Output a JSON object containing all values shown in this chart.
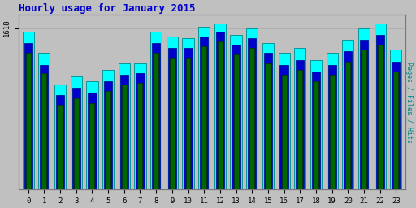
{
  "title": "Hourly usage for January 2015",
  "hours": [
    0,
    1,
    2,
    3,
    4,
    5,
    6,
    7,
    8,
    9,
    10,
    11,
    12,
    13,
    14,
    15,
    16,
    17,
    18,
    19,
    20,
    21,
    22,
    23
  ],
  "ytick_label": "1618",
  "hits": [
    95,
    82,
    63,
    68,
    65,
    72,
    76,
    76,
    95,
    92,
    91,
    98,
    100,
    93,
    97,
    88,
    82,
    85,
    78,
    82,
    90,
    97,
    100,
    84
  ],
  "files": [
    88,
    75,
    57,
    61,
    58,
    65,
    69,
    70,
    88,
    85,
    85,
    92,
    95,
    87,
    91,
    82,
    75,
    78,
    71,
    75,
    83,
    90,
    93,
    77
  ],
  "pages": [
    82,
    70,
    51,
    55,
    52,
    59,
    63,
    64,
    82,
    79,
    79,
    86,
    89,
    81,
    85,
    76,
    69,
    72,
    65,
    69,
    77,
    84,
    87,
    71
  ],
  "color_hits": "#00ffff",
  "color_files": "#0000cc",
  "color_pages": "#006600",
  "edge_hits": "#008888",
  "edge_files": "#000088",
  "edge_pages": "#003300",
  "bg_color": "#c0c0c0",
  "title_color": "#0000cc",
  "ylabel_right": "Pages / Files / Hits",
  "ylabel_right_color": "#008888",
  "bar_width": 0.72,
  "ylim": [
    0,
    105
  ],
  "ytick_pos": 97,
  "figsize": [
    5.12,
    2.56
  ],
  "dpi": 100
}
